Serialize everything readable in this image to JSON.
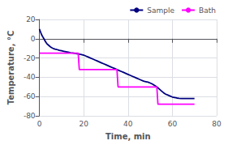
{
  "chart_data": {
    "type": "line",
    "title": "",
    "xlabel": "Time, min",
    "ylabel": "Temperature, °C",
    "xlim": [
      0,
      80
    ],
    "ylim": [
      -80,
      20
    ],
    "xticks": [
      0,
      20,
      40,
      60,
      80
    ],
    "yticks": [
      -80,
      -60,
      -40,
      -20,
      0,
      20
    ],
    "grid": true,
    "legend": "upper right",
    "series": [
      {
        "name": "Sample",
        "color": "#000080",
        "x": [
          0,
          0.5,
          1,
          1.5,
          2,
          2.5,
          3,
          3.5,
          4,
          4.5,
          5,
          5.5,
          6,
          6.5,
          7,
          7.5,
          8,
          9,
          10,
          11,
          12,
          13,
          14,
          15,
          16,
          17,
          18,
          19,
          20,
          21,
          22,
          23,
          24,
          25,
          26,
          27,
          28,
          29,
          30,
          31,
          32,
          33,
          34,
          35,
          36,
          37,
          38,
          39,
          40,
          41,
          42,
          43,
          44,
          45,
          46,
          47,
          48,
          49,
          50,
          51,
          52,
          53,
          54,
          55,
          56,
          57,
          58,
          59,
          60,
          61,
          62,
          63,
          64,
          65,
          66,
          67,
          68,
          69,
          70
        ],
        "values": [
          10,
          7,
          4,
          2,
          0,
          -2,
          -4,
          -5.5,
          -6.5,
          -7.5,
          -8.5,
          -9.2,
          -9.8,
          -10.3,
          -10.7,
          -11,
          -11.3,
          -12,
          -12.5,
          -13,
          -13.5,
          -14,
          -14.5,
          -14.8,
          -15.2,
          -15.5,
          -16,
          -16.5,
          -17,
          -18,
          -19,
          -20,
          -21,
          -22,
          -23,
          -24,
          -25,
          -26,
          -27,
          -28,
          -29,
          -30,
          -31,
          -32,
          -33,
          -34,
          -35,
          -36,
          -37,
          -38,
          -39,
          -40,
          -41,
          -42,
          -43,
          -44,
          -44.5,
          -45,
          -46,
          -47,
          -48.5,
          -50,
          -52,
          -54,
          -56,
          -57.5,
          -58.5,
          -59.5,
          -60.5,
          -61,
          -61.5,
          -61.8,
          -62,
          -62,
          -62,
          -62,
          -62,
          -62,
          -62
        ]
      },
      {
        "name": "Bath",
        "color": "#FF00FF",
        "x": [
          0,
          0.3,
          1,
          17.5,
          18,
          18.5,
          35,
          35.5,
          36,
          53,
          53.5,
          54,
          70
        ],
        "values": [
          -15,
          -15,
          -15,
          -15,
          -32,
          -32,
          -32,
          -50,
          -50,
          -50,
          -68,
          -68,
          -68
        ]
      }
    ]
  }
}
